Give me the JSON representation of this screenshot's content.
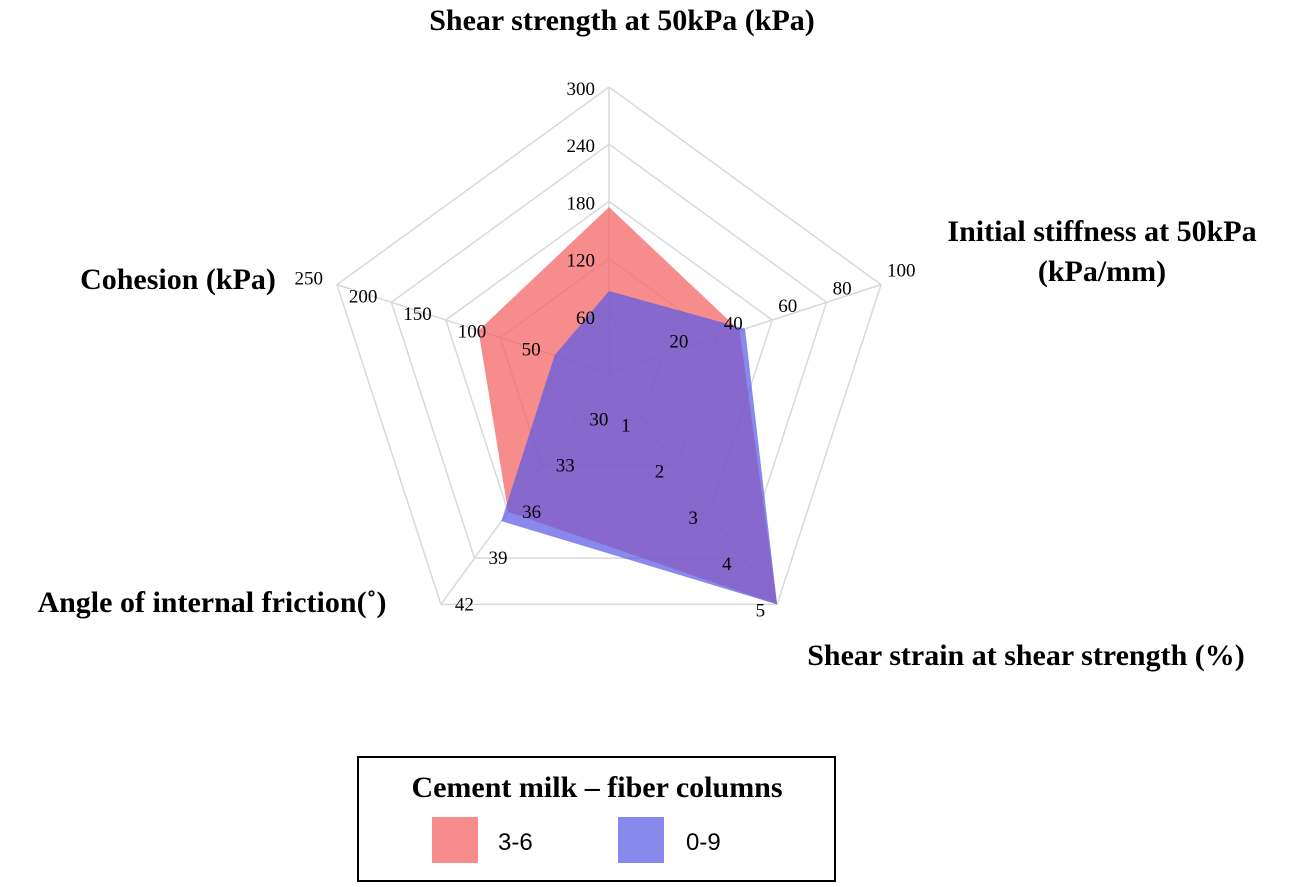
{
  "chart_data": {
    "type": "radar",
    "axes": [
      {
        "label_lines": [
          "Shear strength at 50kPa (kPa)"
        ],
        "ticks": [
          "60",
          "120",
          "180",
          "240",
          "300"
        ],
        "range": [
          0,
          300
        ]
      },
      {
        "label_lines": [
          "Initial stiffness at 50kPa",
          "(kPa/mm)"
        ],
        "ticks": [
          "20",
          "40",
          "60",
          "80",
          "100"
        ],
        "range": [
          0,
          100
        ]
      },
      {
        "label_lines": [
          "Shear strain at shear strength (%)"
        ],
        "ticks": [
          "1",
          "2",
          "3",
          "4",
          "5"
        ],
        "range": [
          0,
          5
        ]
      },
      {
        "label_lines": [
          "Angle of internal friction(˚)"
        ],
        "ticks": [
          "30",
          "33",
          "36",
          "39",
          "42"
        ],
        "range": [
          27,
          42
        ]
      },
      {
        "label_lines": [
          "Cohesion (kPa)"
        ],
        "ticks": [
          "50",
          "100",
          "150",
          "200",
          "250"
        ],
        "range": [
          0,
          250
        ]
      }
    ],
    "series": [
      {
        "name": "3-6",
        "color": "#f46060",
        "opacity": 0.72,
        "values": [
          174,
          48,
          5.0,
          36.0,
          120
        ]
      },
      {
        "name": "0-9",
        "color": "#5c5ce6",
        "opacity": 0.72,
        "values": [
          86,
          50,
          5.0,
          36.6,
          50
        ]
      }
    ],
    "legend": {
      "title": "Cement milk – fiber columns",
      "placement": "bottom"
    },
    "grid": true
  }
}
